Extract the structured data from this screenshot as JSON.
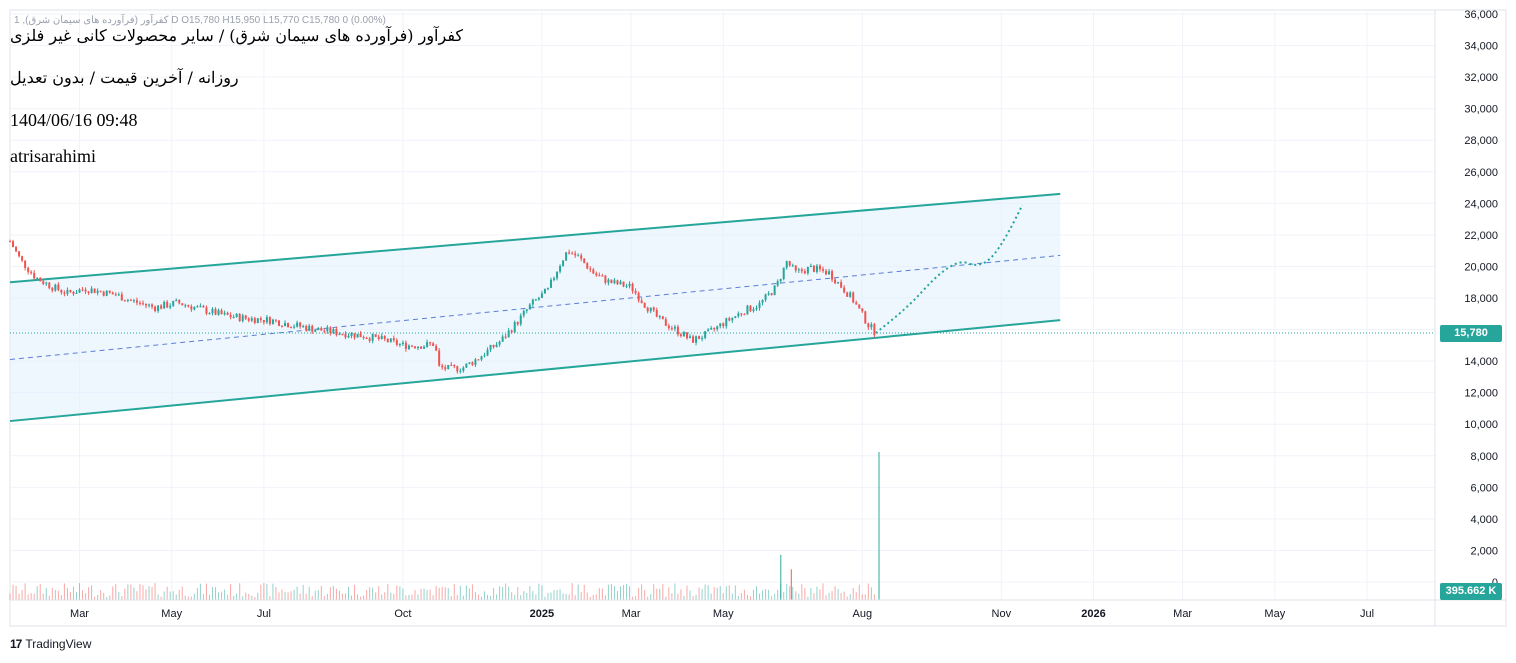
{
  "header": {
    "legend": "1 ,کفرآور (فرآورده های سیمان شرق) D  O15,780  H15,950  L15,770  C15,780  0 (0.00%)",
    "title_line1": "کفرآور (فرآورده های سیمان شرق) / سایر محصولات کانی غیر فلزی",
    "title_line2": "روزانه / آخرین قیمت / بدون تعدیل",
    "title_line3": "1404/06/16 09:48",
    "title_line4": "atrisarahimi"
  },
  "branding": {
    "logo_text": "TradingView",
    "logo_mark": "17"
  },
  "colors": {
    "up": "#26a69a",
    "down": "#ef5350",
    "channel": "#26a69a",
    "channel_fill": "#e3f0fd",
    "midline": "#5b7fd6",
    "grid": "#f0f3fa"
  },
  "last_price_label": "15,780",
  "volume_label": "395.662 K",
  "chart_data": {
    "type": "candlestick",
    "y_axis": {
      "range": [
        0,
        36000
      ],
      "ticks": [
        "36,000",
        "34,000",
        "32,000",
        "30,000",
        "28,000",
        "26,000",
        "24,000",
        "22,000",
        "20,000",
        "18,000",
        "16,000",
        "14,000",
        "12,000",
        "10,000",
        "8,000",
        "6,000",
        "4,000",
        "2,000",
        "0"
      ]
    },
    "x_axis": {
      "range": [
        "2024-01-15",
        "2026-08-15"
      ],
      "ticks": [
        {
          "label": "Mar",
          "date": "2024-03-01"
        },
        {
          "label": "May",
          "date": "2024-05-01"
        },
        {
          "label": "Jul",
          "date": "2024-07-01"
        },
        {
          "label": "Oct",
          "date": "2024-10-01"
        },
        {
          "label": "2025",
          "date": "2025-01-01"
        },
        {
          "label": "Mar",
          "date": "2025-03-01"
        },
        {
          "label": "May",
          "date": "2025-05-01"
        },
        {
          "label": "Aug",
          "date": "2025-08-01"
        },
        {
          "label": "Nov",
          "date": "2025-11-01"
        },
        {
          "label": "2026",
          "date": "2026-01-01"
        },
        {
          "label": "Mar",
          "date": "2026-03-01"
        },
        {
          "label": "May",
          "date": "2026-05-01"
        },
        {
          "label": "Jul",
          "date": "2026-07-01"
        }
      ]
    },
    "price_path": [
      [
        "2024-01-15",
        21600
      ],
      [
        "2024-01-22",
        20400
      ],
      [
        "2024-02-01",
        19300
      ],
      [
        "2024-02-12",
        18700
      ],
      [
        "2024-02-22",
        18300
      ],
      [
        "2024-03-05",
        18600
      ],
      [
        "2024-03-15",
        18400
      ],
      [
        "2024-03-25",
        18200
      ],
      [
        "2024-04-05",
        17800
      ],
      [
        "2024-04-20",
        17400
      ],
      [
        "2024-05-05",
        17700
      ],
      [
        "2024-05-20",
        17300
      ],
      [
        "2024-06-05",
        16900
      ],
      [
        "2024-06-20",
        16700
      ],
      [
        "2024-07-05",
        16600
      ],
      [
        "2024-07-20",
        16300
      ],
      [
        "2024-08-05",
        16000
      ],
      [
        "2024-08-20",
        15800
      ],
      [
        "2024-09-05",
        15600
      ],
      [
        "2024-09-20",
        15300
      ],
      [
        "2024-10-01",
        15000
      ],
      [
        "2024-10-15",
        15000
      ],
      [
        "2024-10-22",
        15100
      ],
      [
        "2024-10-25",
        13600
      ],
      [
        "2024-11-01",
        13500
      ],
      [
        "2024-11-10",
        13600
      ],
      [
        "2024-11-20",
        14200
      ],
      [
        "2024-12-05",
        15300
      ],
      [
        "2024-12-15",
        16400
      ],
      [
        "2024-12-25",
        17600
      ],
      [
        "2025-01-05",
        18500
      ],
      [
        "2025-01-12",
        20000
      ],
      [
        "2025-01-18",
        21000
      ],
      [
        "2025-01-25",
        20600
      ],
      [
        "2025-02-05",
        19500
      ],
      [
        "2025-02-15",
        19000
      ],
      [
        "2025-03-01",
        18700
      ],
      [
        "2025-03-10",
        17600
      ],
      [
        "2025-03-20",
        16600
      ],
      [
        "2025-04-01",
        15900
      ],
      [
        "2025-04-10",
        15300
      ],
      [
        "2025-04-20",
        15700
      ],
      [
        "2025-05-01",
        16400
      ],
      [
        "2025-05-15",
        17200
      ],
      [
        "2025-05-25",
        17600
      ],
      [
        "2025-06-05",
        18700
      ],
      [
        "2025-06-12",
        20300
      ],
      [
        "2025-06-18",
        19600
      ],
      [
        "2025-06-28",
        19900
      ],
      [
        "2025-07-10",
        19600
      ],
      [
        "2025-07-25",
        18000
      ],
      [
        "2025-08-05",
        16300
      ],
      [
        "2025-08-10",
        15780
      ]
    ],
    "projection_path": [
      [
        "2025-08-10",
        15780
      ],
      [
        "2025-09-01",
        17500
      ],
      [
        "2025-09-20",
        19500
      ],
      [
        "2025-10-05",
        20400
      ],
      [
        "2025-10-15",
        20000
      ],
      [
        "2025-10-25",
        20400
      ],
      [
        "2025-11-05",
        22000
      ],
      [
        "2025-11-15",
        23900
      ]
    ],
    "channel": {
      "upper": [
        [
          "2024-01-15",
          19000
        ],
        [
          "2025-12-10",
          24600
        ]
      ],
      "lower": [
        [
          "2024-01-15",
          10200
        ],
        [
          "2025-12-10",
          16600
        ]
      ],
      "middle": [
        [
          "2024-01-15",
          14100
        ],
        [
          "2025-12-10",
          20700
        ]
      ]
    },
    "volume_spikes": [
      [
        "2025-06-08",
        2500
      ],
      [
        "2025-06-15",
        1700
      ],
      [
        "2025-08-12",
        8200
      ]
    ],
    "last_price": 15780,
    "last_volume": "395.662 K"
  }
}
